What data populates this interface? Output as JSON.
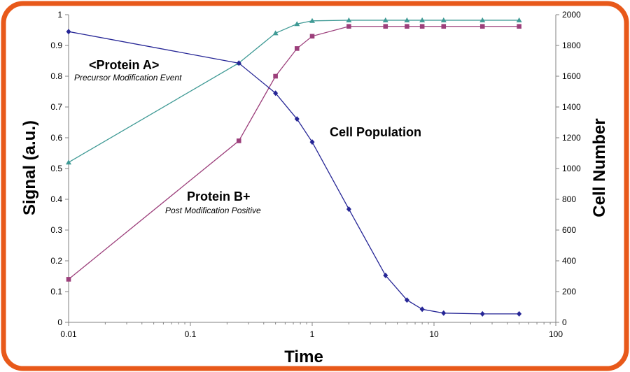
{
  "chart_data": {
    "type": "line",
    "xlabel": "Time",
    "ylabel": "Signal (a.u.)",
    "y2label": "Cell Number",
    "xscale": "log",
    "xlim": [
      0.01,
      100
    ],
    "ylim": [
      0,
      1
    ],
    "y2lim": [
      0,
      2000
    ],
    "x_ticks": [
      "0.01",
      "0.1",
      "1",
      "10",
      "100"
    ],
    "y_ticks": [
      "0",
      "0.1",
      "0.2",
      "0.3",
      "0.4",
      "0.5",
      "0.6",
      "0.7",
      "0.8",
      "0.9",
      "1"
    ],
    "y2_ticks": [
      "0",
      "200",
      "400",
      "600",
      "800",
      "1000",
      "1200",
      "1400",
      "1600",
      "1800",
      "2000"
    ],
    "grid": false,
    "colors": {
      "frame": "#e8591a",
      "protein_a": "#3f9a95",
      "protein_b": "#9c3f7b",
      "cell_population": "#262696"
    },
    "annotations": [
      {
        "text": "<Protein A>",
        "style": "bold"
      },
      {
        "text": "Precursor Modification Event",
        "style": "italic"
      },
      {
        "text": "Protein B+",
        "style": "bold"
      },
      {
        "text": "Post Modification Positive",
        "style": "italic"
      },
      {
        "text": "Cell Population",
        "style": "bold"
      }
    ],
    "series": [
      {
        "axis": "left",
        "marker": "triangle",
        "color_key": "protein_a",
        "x": [
          0.01,
          0.25,
          0.5,
          0.75,
          1,
          2,
          4,
          6,
          8,
          12,
          25,
          50
        ],
        "y": [
          0.52,
          0.843,
          0.94,
          0.97,
          0.98,
          0.982,
          0.982,
          0.982,
          0.982,
          0.982,
          0.982,
          0.982
        ]
      },
      {
        "axis": "left",
        "marker": "square",
        "color_key": "protein_b",
        "x": [
          0.01,
          0.25,
          0.5,
          0.75,
          1,
          2,
          4,
          6,
          8,
          12,
          25,
          50
        ],
        "y": [
          0.14,
          0.59,
          0.8,
          0.89,
          0.93,
          0.962,
          0.962,
          0.962,
          0.962,
          0.962,
          0.962,
          0.962
        ]
      },
      {
        "axis": "right",
        "marker": "diamond",
        "color_key": "cell_population",
        "x": [
          0.01,
          0.25,
          0.5,
          0.75,
          1,
          2,
          4,
          6,
          8,
          12,
          25,
          50
        ],
        "y": [
          1890,
          1685,
          1490,
          1322,
          1172,
          736,
          305,
          145,
          85,
          60,
          55,
          55
        ]
      }
    ]
  }
}
